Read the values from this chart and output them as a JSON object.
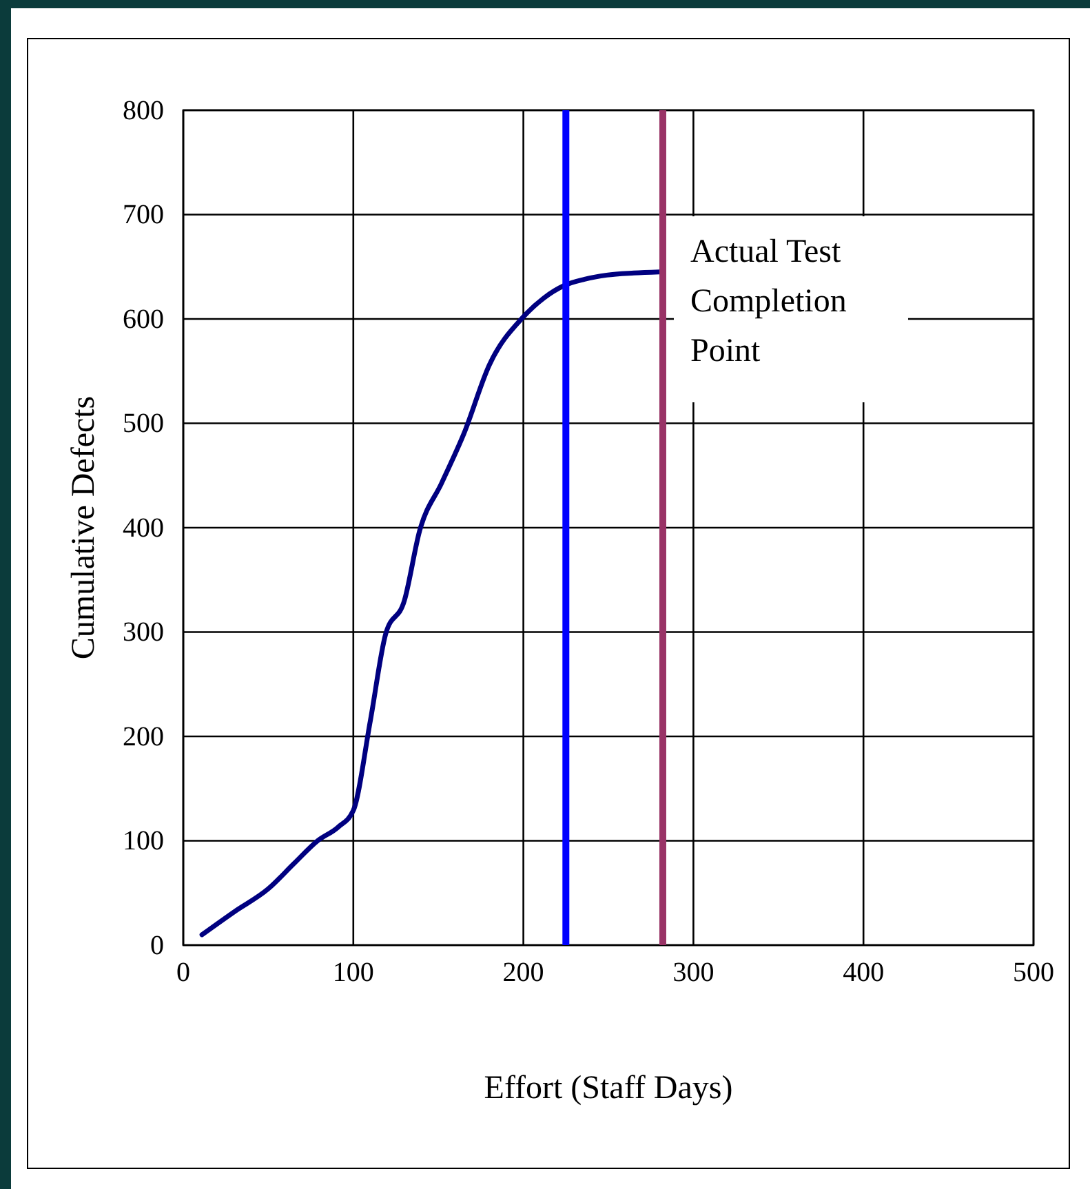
{
  "chart_data": {
    "type": "line",
    "xlabel": "Effort (Staff Days)",
    "ylabel": "Cumulative Defects",
    "x": [
      11,
      30,
      50,
      65,
      79,
      91,
      100,
      110,
      119,
      130,
      139,
      152,
      165,
      180,
      200,
      212,
      224,
      236,
      249,
      265,
      280
    ],
    "series": [
      {
        "color": "#000080",
        "values": [
          10,
          32,
          54,
          78,
          100,
          113,
          129,
          215,
          298,
          330,
          397,
          443,
          490,
          556,
          602,
          620,
          632,
          638,
          642,
          644,
          645
        ]
      }
    ],
    "xlim": [
      0,
      500
    ],
    "xticks": [
      0,
      100,
      200,
      300,
      400,
      500
    ],
    "ylim": [
      0,
      800
    ],
    "yticks": [
      0,
      100,
      200,
      300,
      400,
      500,
      600,
      700,
      800
    ],
    "grid": true,
    "marker": "none",
    "line_style": "solid",
    "ref_lines": [
      {
        "axis": "x",
        "value": 225,
        "color": "#0000ff"
      },
      {
        "axis": "x",
        "value": 282,
        "color": "#993366",
        "label": "Actual Test Completion Point"
      }
    ]
  }
}
